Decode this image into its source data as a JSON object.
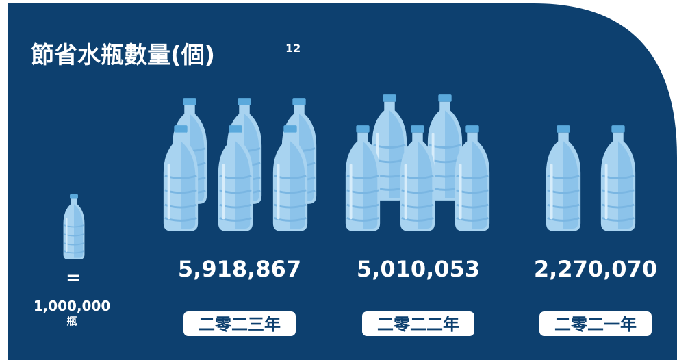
{
  "title": "節省水瓶數量(個)",
  "title_note": "12",
  "legend": {
    "equals": "=",
    "amount": "1,000,000",
    "unit": "瓶"
  },
  "items": [
    {
      "value": "5,918,867",
      "year": "二零二三年"
    },
    {
      "value": "5,010,053",
      "year": "二零二二年"
    },
    {
      "value": "2,270,070",
      "year": "二零二一年"
    }
  ]
}
